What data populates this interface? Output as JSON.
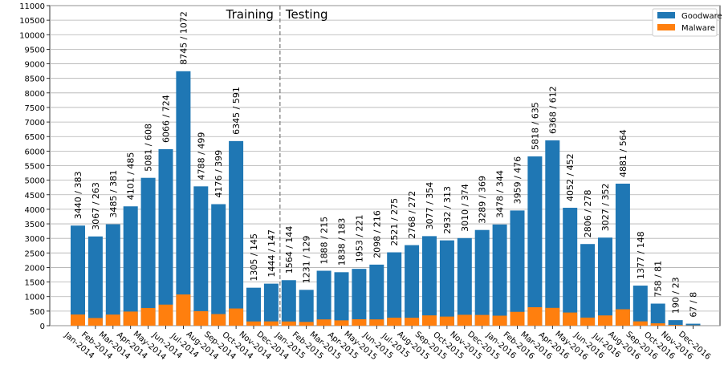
{
  "chart_data": {
    "type": "bar",
    "categories": [
      "Jan-2014",
      "Feb-2014",
      "Mar-2014",
      "Apr-2014",
      "May-2014",
      "Jun-2014",
      "Jul-2014",
      "Aug-2014",
      "Sep-2014",
      "Oct-2014",
      "Nov-2014",
      "Dec-2014",
      "Jan-2015",
      "Feb-2015",
      "Mar-2015",
      "Apr-2015",
      "May-2015",
      "Jun-2015",
      "Jul-2015",
      "Aug-2015",
      "Sep-2015",
      "Oct-2015",
      "Nov-2015",
      "Dec-2015",
      "Jan-2016",
      "Feb-2016",
      "Mar-2016",
      "Apr-2016",
      "May-2016",
      "Jun-2016",
      "Jul-2016",
      "Aug-2016",
      "Sep-2016",
      "Oct-2016",
      "Nov-2016",
      "Dec-2016"
    ],
    "series": [
      {
        "name": "Goodware",
        "color": "#1f77b4",
        "values": [
          3440,
          3067,
          3485,
          4101,
          5081,
          6066,
          8745,
          4788,
          4176,
          6345,
          1305,
          1444,
          1564,
          1231,
          1888,
          1838,
          1953,
          2098,
          2521,
          2768,
          3077,
          2932,
          3010,
          3289,
          3478,
          3959,
          5818,
          6368,
          4052,
          2806,
          3027,
          4881,
          1377,
          758,
          190,
          67
        ]
      },
      {
        "name": "Malware",
        "color": "#ff7f0e",
        "values": [
          383,
          263,
          381,
          485,
          608,
          724,
          1072,
          499,
          399,
          591,
          145,
          147,
          144,
          129,
          215,
          183,
          221,
          216,
          275,
          272,
          354,
          313,
          374,
          369,
          344,
          476,
          635,
          612,
          452,
          278,
          352,
          564,
          148,
          81,
          23,
          8
        ]
      }
    ],
    "value_labels": [
      "3440 / 383",
      "3067 / 263",
      "3485 / 381",
      "4101 / 485",
      "5081 / 608",
      "6066 / 724",
      "8745 / 1072",
      "4788 / 499",
      "4176 / 399",
      "6345 / 591",
      "1305 / 145",
      "1444 / 147",
      "1564 / 144",
      "1231 / 129",
      "1888 / 215",
      "1838 / 183",
      "1953 / 221",
      "2098 / 216",
      "2521 / 275",
      "2768 / 272",
      "3077 / 354",
      "2932 / 313",
      "3010 / 374",
      "3289 / 369",
      "3478 / 344",
      "3959 / 476",
      "5818 / 635",
      "6368 / 612",
      "4052 / 452",
      "2806 / 278",
      "3027 / 352",
      "4881 / 564",
      "1377 / 148",
      "758 / 81",
      "190 / 23",
      "67 / 8"
    ],
    "annotations": [
      "Training",
      "Testing"
    ],
    "ylim": [
      0,
      11000
    ],
    "yticks": [
      0,
      500,
      1000,
      1500,
      2000,
      2500,
      3000,
      3500,
      4000,
      4500,
      5000,
      5500,
      6000,
      6500,
      7000,
      7500,
      8000,
      8500,
      9000,
      9500,
      10000,
      10500,
      11000
    ],
    "grid": true,
    "legend": "upper right"
  }
}
